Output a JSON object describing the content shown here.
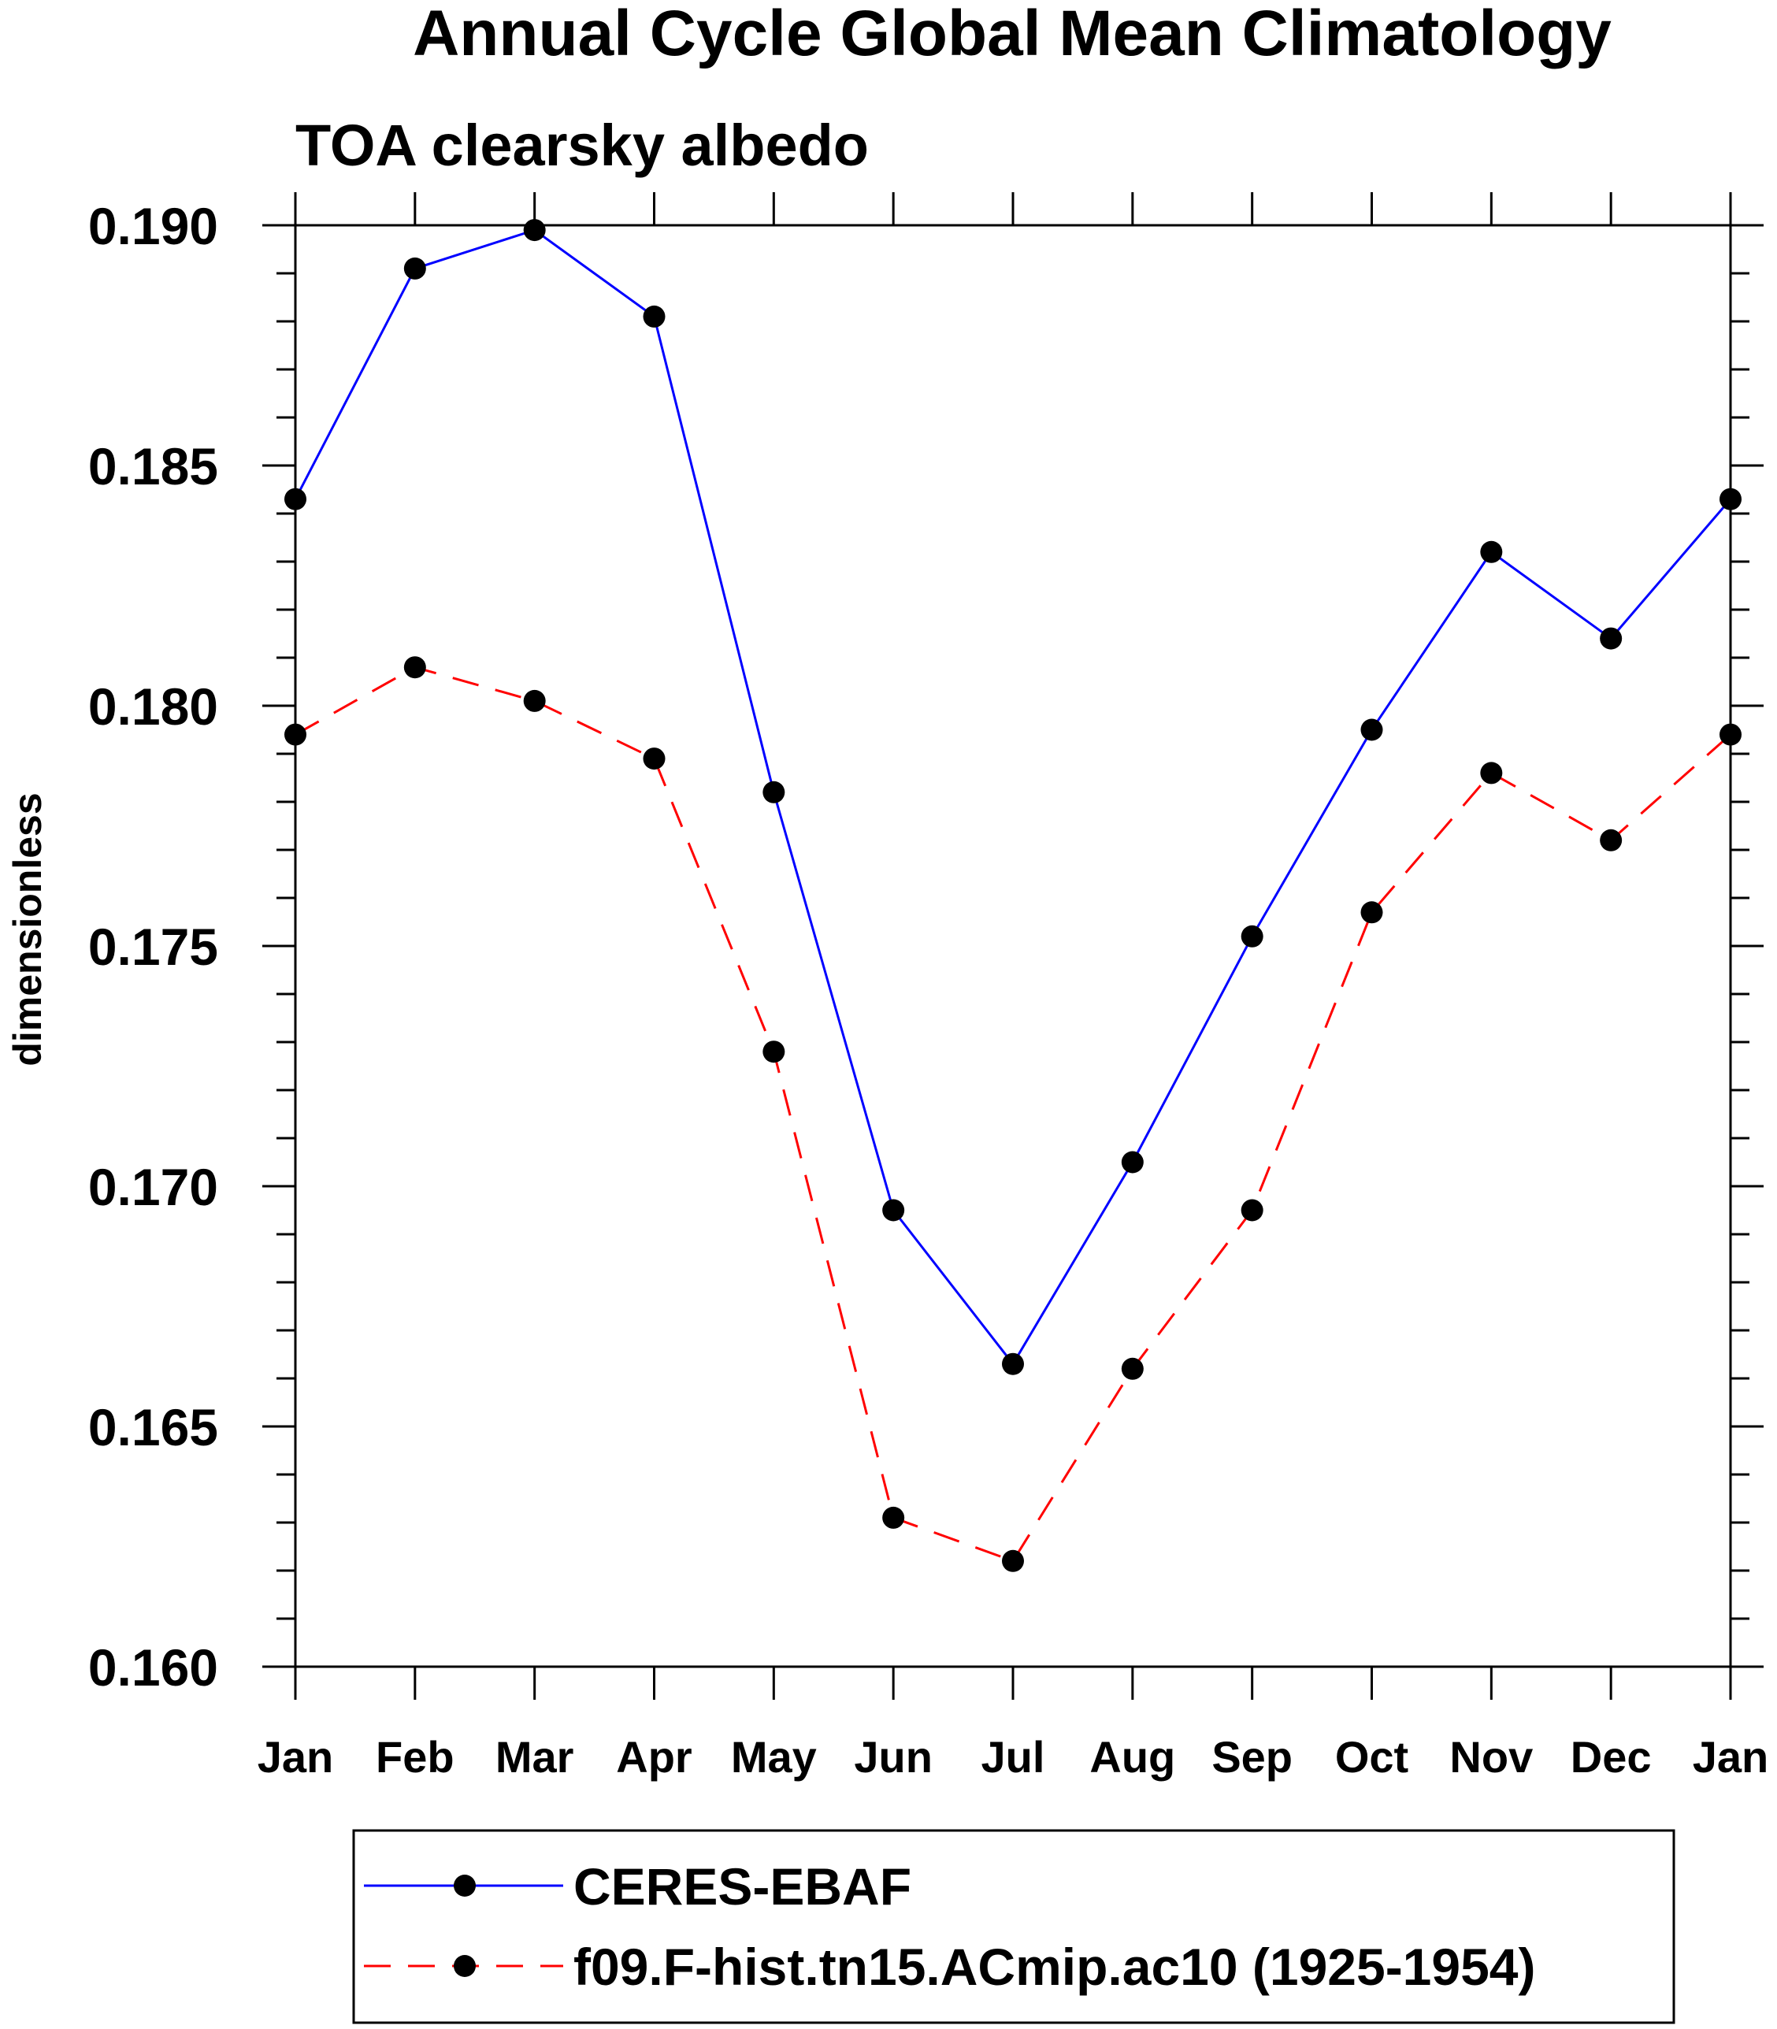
{
  "chart_data": {
    "type": "line",
    "title": "Annual Cycle Global Mean Climatology",
    "subtitle": "TOA clearsky albedo",
    "xlabel": "",
    "ylabel": "dimensionless",
    "categories": [
      "Jan",
      "Feb",
      "Mar",
      "Apr",
      "May",
      "Jun",
      "Jul",
      "Aug",
      "Sep",
      "Oct",
      "Nov",
      "Dec",
      "Jan"
    ],
    "ylim": [
      0.16,
      0.19
    ],
    "yticks": [
      "0.160",
      "0.165",
      "0.170",
      "0.175",
      "0.180",
      "0.185",
      "0.190"
    ],
    "grid": false,
    "legend_position": "bottom",
    "series": [
      {
        "name": "CERES-EBAF",
        "color": "#0000ff",
        "dash": "solid",
        "marker": "filled-circle",
        "values": [
          0.1843,
          0.1891,
          0.1899,
          0.1881,
          0.1782,
          0.1695,
          0.1663,
          0.1705,
          0.1752,
          0.1795,
          0.1832,
          0.1814,
          0.1843
        ]
      },
      {
        "name": "f09.F-hist.tn15.ACmip.ac10 (1925-1954)",
        "color": "#ff0000",
        "dash": "dashed",
        "marker": "filled-circle",
        "values": [
          0.1794,
          0.1808,
          0.1801,
          0.1789,
          0.1728,
          0.1631,
          0.1622,
          0.1662,
          0.1695,
          0.1757,
          0.1786,
          0.1772,
          0.1794
        ]
      }
    ]
  }
}
